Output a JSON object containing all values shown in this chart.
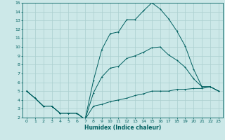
{
  "xlabel": "Humidex (Indice chaleur)",
  "background_color": "#cce8e8",
  "grid_color": "#aacfcf",
  "line_color": "#006060",
  "xlim": [
    -0.5,
    23.5
  ],
  "ylim": [
    2,
    15
  ],
  "xticks": [
    0,
    1,
    2,
    3,
    4,
    5,
    6,
    7,
    8,
    9,
    10,
    11,
    12,
    13,
    14,
    15,
    16,
    17,
    18,
    19,
    20,
    21,
    22,
    23
  ],
  "yticks": [
    2,
    3,
    4,
    5,
    6,
    7,
    8,
    9,
    10,
    11,
    12,
    13,
    14,
    15
  ],
  "line_max": {
    "x": [
      0,
      1,
      2,
      3,
      4,
      5,
      6,
      7,
      8,
      9,
      10,
      11,
      12,
      13,
      14,
      15,
      16,
      17,
      18,
      19,
      20,
      21,
      22,
      23
    ],
    "y": [
      5.0,
      4.2,
      3.3,
      3.3,
      2.5,
      2.5,
      2.5,
      1.8,
      6.2,
      9.7,
      11.5,
      11.7,
      13.1,
      13.1,
      14.1,
      15.0,
      14.3,
      13.2,
      11.8,
      10.1,
      7.5,
      5.5,
      5.5,
      5.0
    ]
  },
  "line_min": {
    "x": [
      0,
      1,
      2,
      3,
      4,
      5,
      6,
      7,
      8,
      9,
      10,
      11,
      12,
      13,
      14,
      15,
      16,
      17,
      18,
      19,
      20,
      21,
      22,
      23
    ],
    "y": [
      5.0,
      4.2,
      3.3,
      3.3,
      2.5,
      2.5,
      2.5,
      1.8,
      3.3,
      3.5,
      3.8,
      4.0,
      4.2,
      4.5,
      4.7,
      5.0,
      5.0,
      5.0,
      5.2,
      5.2,
      5.3,
      5.3,
      5.5,
      5.0
    ]
  },
  "line_mean": {
    "x": [
      0,
      1,
      2,
      3,
      4,
      5,
      6,
      7,
      8,
      9,
      10,
      11,
      12,
      13,
      14,
      15,
      16,
      17,
      18,
      19,
      20,
      21,
      22,
      23
    ],
    "y": [
      5.0,
      4.2,
      3.3,
      3.3,
      2.5,
      2.5,
      2.5,
      1.8,
      4.8,
      6.6,
      7.6,
      7.8,
      8.7,
      9.0,
      9.4,
      9.9,
      10.0,
      9.1,
      8.5,
      7.7,
      6.4,
      5.5,
      5.5,
      5.0
    ]
  }
}
